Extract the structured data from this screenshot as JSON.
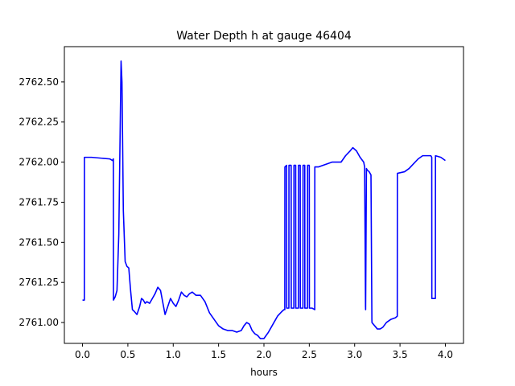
{
  "chart_data": {
    "type": "line",
    "title": "Water Depth h at gauge 46404",
    "xlabel": "hours",
    "ylabel": "",
    "xlim": [
      -0.2,
      4.2
    ],
    "ylim": [
      2760.87,
      2762.72
    ],
    "grid": false,
    "x_ticks": [
      0.0,
      0.5,
      1.0,
      1.5,
      2.0,
      2.5,
      3.0,
      3.5,
      4.0
    ],
    "x_tick_labels": [
      "0.0",
      "0.5",
      "1.0",
      "1.5",
      "2.0",
      "2.5",
      "3.0",
      "3.5",
      "4.0"
    ],
    "y_ticks": [
      2761.0,
      2761.25,
      2761.5,
      2761.75,
      2762.0,
      2762.25,
      2762.5
    ],
    "y_tick_labels": [
      "2761.00",
      "2761.25",
      "2761.50",
      "2761.75",
      "2762.00",
      "2762.25",
      "2762.50"
    ],
    "series": [
      {
        "color": "#0000ff",
        "x": [
          0.0,
          0.02,
          0.021,
          0.1,
          0.2,
          0.3,
          0.33,
          0.34,
          0.341,
          0.36,
          0.38,
          0.4,
          0.415,
          0.425,
          0.435,
          0.45,
          0.47,
          0.49,
          0.51,
          0.53,
          0.55,
          0.57,
          0.6,
          0.63,
          0.65,
          0.67,
          0.69,
          0.71,
          0.74,
          0.77,
          0.8,
          0.83,
          0.86,
          0.88,
          0.91,
          0.94,
          0.97,
          1.0,
          1.03,
          1.06,
          1.09,
          1.12,
          1.15,
          1.18,
          1.21,
          1.25,
          1.3,
          1.35,
          1.4,
          1.45,
          1.5,
          1.55,
          1.6,
          1.65,
          1.7,
          1.75,
          1.78,
          1.81,
          1.84,
          1.87,
          1.9,
          1.93,
          1.96,
          2.0,
          2.05,
          2.1,
          2.15,
          2.2,
          2.22,
          2.23,
          2.231,
          2.25,
          2.251,
          2.275,
          2.276,
          2.3,
          2.301,
          2.33,
          2.331,
          2.35,
          2.351,
          2.38,
          2.381,
          2.4,
          2.401,
          2.43,
          2.431,
          2.45,
          2.451,
          2.48,
          2.481,
          2.5,
          2.501,
          2.53,
          2.56,
          2.561,
          2.6,
          2.65,
          2.7,
          2.75,
          2.8,
          2.85,
          2.9,
          2.95,
          2.98,
          3.02,
          3.06,
          3.1,
          3.11,
          3.12,
          3.121,
          3.13,
          3.14,
          3.16,
          3.18,
          3.19,
          3.191,
          3.22,
          3.25,
          3.28,
          3.31,
          3.35,
          3.4,
          3.45,
          3.47,
          3.471,
          3.55,
          3.6,
          3.65,
          3.7,
          3.75,
          3.78,
          3.81,
          3.84,
          3.85,
          3.851,
          3.89,
          3.891,
          3.95,
          4.0
        ],
        "y": [
          2761.14,
          2761.14,
          2762.03,
          2762.03,
          2762.025,
          2762.02,
          2762.01,
          2762.02,
          2761.14,
          2761.16,
          2761.2,
          2761.55,
          2762.2,
          2762.63,
          2762.5,
          2761.7,
          2761.38,
          2761.35,
          2761.34,
          2761.2,
          2761.08,
          2761.07,
          2761.05,
          2761.1,
          2761.15,
          2761.14,
          2761.12,
          2761.13,
          2761.12,
          2761.15,
          2761.18,
          2761.22,
          2761.2,
          2761.14,
          2761.05,
          2761.1,
          2761.15,
          2761.12,
          2761.1,
          2761.14,
          2761.19,
          2761.17,
          2761.16,
          2761.18,
          2761.19,
          2761.17,
          2761.17,
          2761.13,
          2761.06,
          2761.02,
          2760.98,
          2760.96,
          2760.95,
          2760.95,
          2760.94,
          2760.95,
          2760.98,
          2761.0,
          2760.99,
          2760.95,
          2760.93,
          2760.92,
          2760.9,
          2760.9,
          2760.94,
          2760.99,
          2761.04,
          2761.07,
          2761.08,
          2761.08,
          2761.97,
          2761.98,
          2761.09,
          2761.09,
          2761.98,
          2761.98,
          2761.09,
          2761.09,
          2761.98,
          2761.98,
          2761.09,
          2761.09,
          2761.98,
          2761.98,
          2761.09,
          2761.09,
          2761.98,
          2761.98,
          2761.09,
          2761.09,
          2761.98,
          2761.98,
          2761.09,
          2761.09,
          2761.08,
          2761.97,
          2761.97,
          2761.98,
          2761.99,
          2762.0,
          2762.0,
          2762.0,
          2762.04,
          2762.07,
          2762.09,
          2762.07,
          2762.03,
          2762.0,
          2761.97,
          2761.1,
          2761.08,
          2761.96,
          2761.95,
          2761.94,
          2761.92,
          2761.02,
          2761.0,
          2760.98,
          2760.96,
          2760.96,
          2760.97,
          2761.0,
          2761.02,
          2761.03,
          2761.04,
          2761.93,
          2761.94,
          2761.96,
          2761.99,
          2762.02,
          2762.04,
          2762.04,
          2762.04,
          2762.04,
          2762.03,
          2761.15,
          2761.15,
          2762.04,
          2762.03,
          2762.01
        ]
      }
    ]
  }
}
